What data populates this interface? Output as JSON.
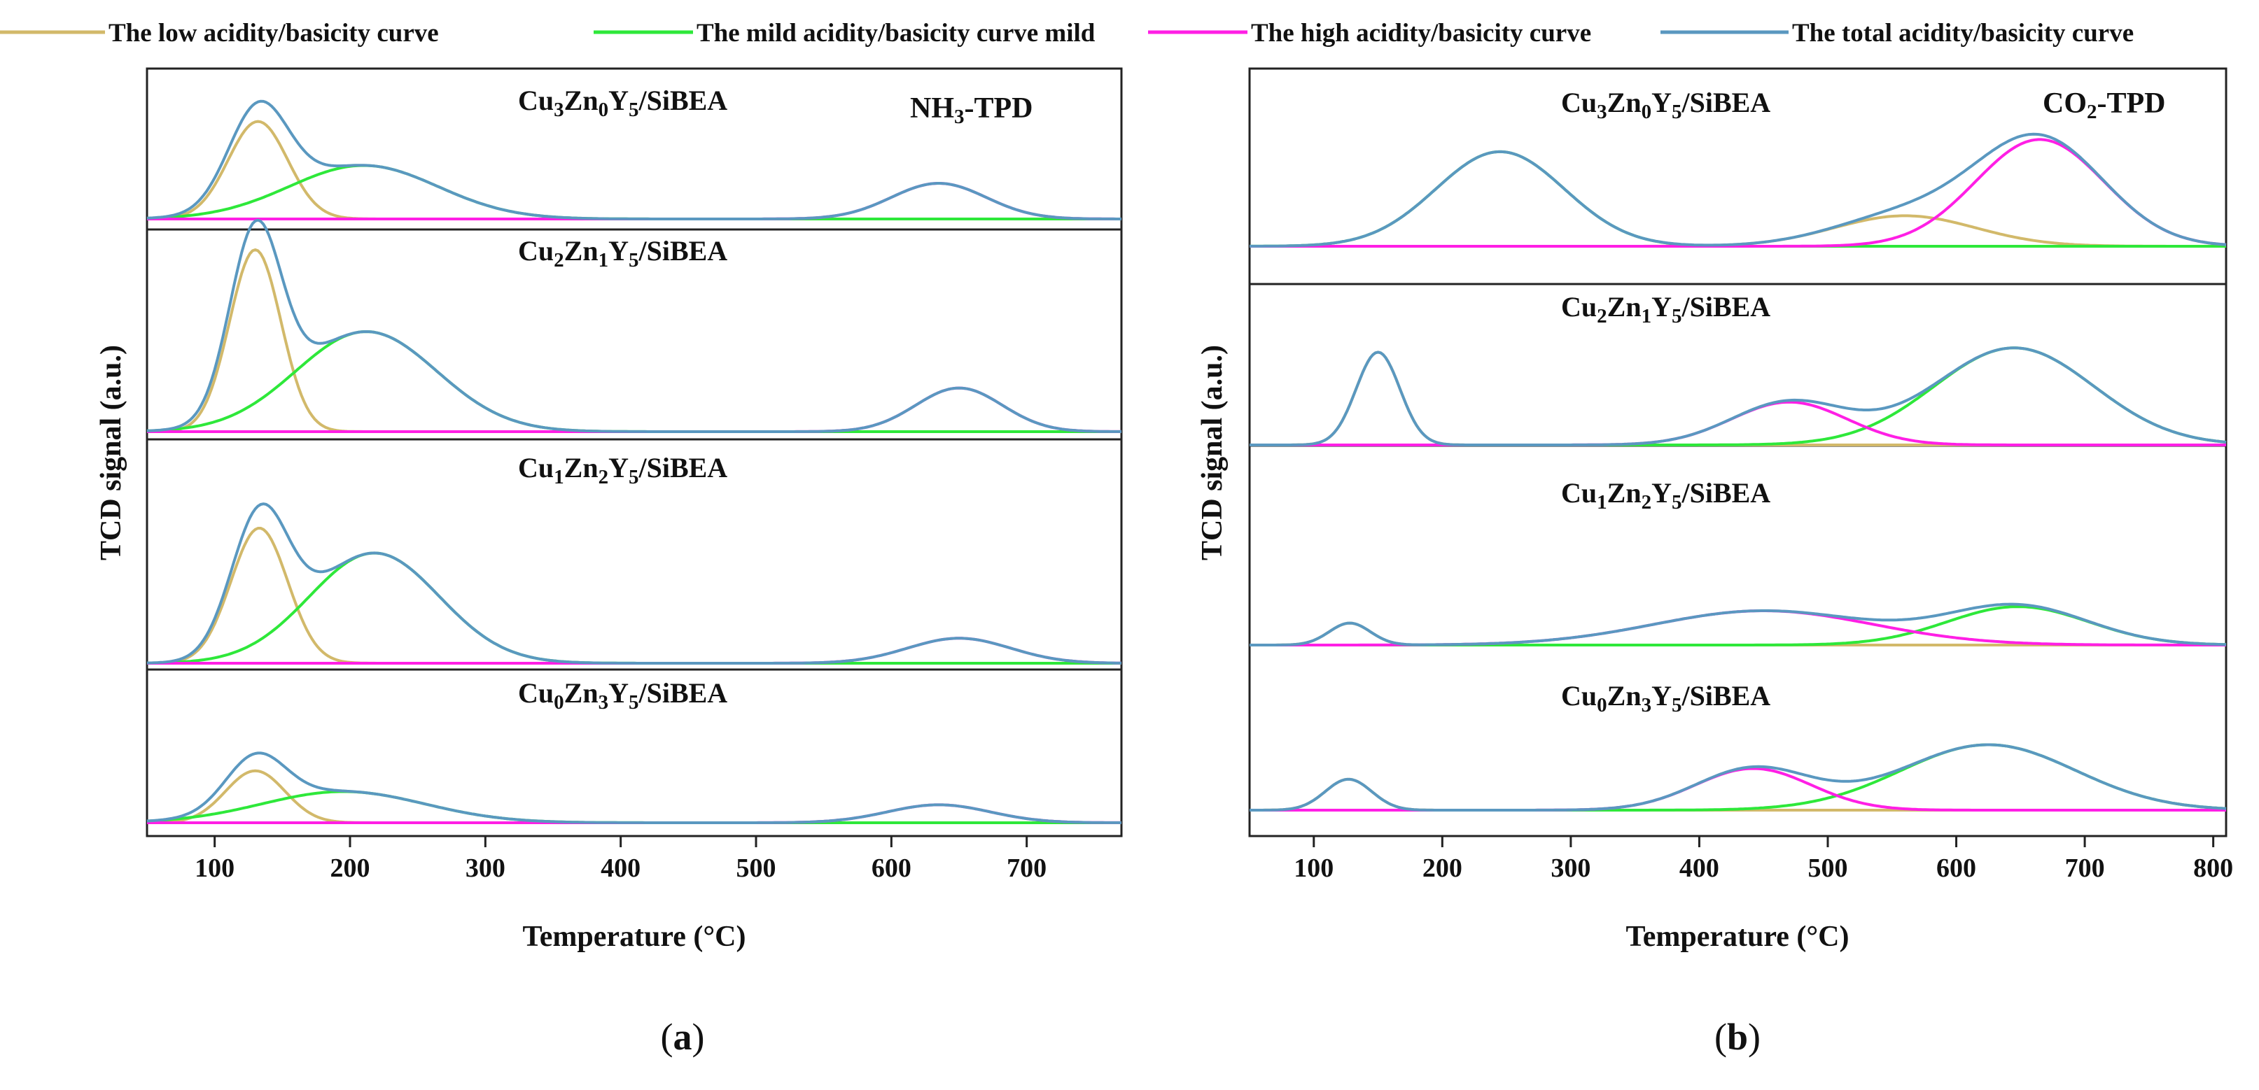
{
  "legend": [
    {
      "label": "The low acidity/basicity curve",
      "color": "#d2b96a"
    },
    {
      "label": "The mild acidity/basicity curve mild",
      "color": "#2ee83a"
    },
    {
      "label": "The high acidity/basicity curve",
      "color": "#ff1fe5"
    },
    {
      "label": "The total acidity/basicity curve",
      "color": "#5a98c0"
    }
  ],
  "colors": {
    "low": "#d2b96a",
    "mild": "#2ee83a",
    "high": "#ff1fe5",
    "total": "#5a98c0"
  },
  "captions": {
    "a": {
      "open": "(",
      "letter": "a",
      "close": ")"
    },
    "b": {
      "open": "(",
      "letter": "b",
      "close": ")"
    }
  },
  "chart_data": [
    {
      "type": "line",
      "id": "a",
      "title": "NH3-TPD",
      "title_parts": {
        "main": "NH",
        "sub": "3",
        "rest": "-TPD"
      },
      "xlabel": "Temperature (°C)",
      "ylabel": "TCD signal (a.u.)",
      "xlim": [
        50,
        770
      ],
      "xticks": [
        100,
        200,
        300,
        400,
        500,
        600,
        700
      ],
      "note": "Gaussian deconvolution: each component = amp * exp(-((T-center)^2)/(2*sigma^2)); total = sum of components. Amplitudes in arbitrary units (a.u.).",
      "panels": [
        {
          "label": "Cu3Zn0Y5/SiBEA",
          "label_parts": [
            [
              "Cu",
              ""
            ],
            [
              "3",
              "sub"
            ],
            [
              "Zn",
              ""
            ],
            [
              "0",
              "sub"
            ],
            [
              "Y",
              ""
            ],
            [
              "5",
              "sub"
            ],
            [
              "/SiBEA",
              ""
            ]
          ],
          "components": {
            "low": [
              {
                "center": 132,
                "sigma": 22,
                "amp": 0.82
              }
            ],
            "mild": [
              {
                "center": 210,
                "sigma": 55,
                "amp": 0.45
              }
            ],
            "high": [
              {
                "center": 635,
                "sigma": 35,
                "amp": 0.3
              }
            ]
          }
        },
        {
          "label": "Cu2Zn1Y5/SiBEA",
          "label_parts": [
            [
              "Cu",
              ""
            ],
            [
              "2",
              "sub"
            ],
            [
              "Zn",
              ""
            ],
            [
              "1",
              "sub"
            ],
            [
              "Y",
              ""
            ],
            [
              "5",
              "sub"
            ],
            [
              "/SiBEA",
              ""
            ]
          ],
          "components": {
            "low": [
              {
                "center": 130,
                "sigma": 19,
                "amp": 1.0
              }
            ],
            "mild": [
              {
                "center": 212,
                "sigma": 52,
                "amp": 0.55
              }
            ],
            "high": [
              {
                "center": 650,
                "sigma": 32,
                "amp": 0.24
              }
            ]
          }
        },
        {
          "label": "Cu1Zn2Y5/SiBEA",
          "label_parts": [
            [
              "Cu",
              ""
            ],
            [
              "1",
              "sub"
            ],
            [
              "Zn",
              ""
            ],
            [
              "2",
              "sub"
            ],
            [
              "Y",
              ""
            ],
            [
              "5",
              "sub"
            ],
            [
              "/SiBEA",
              ""
            ]
          ],
          "components": {
            "low": [
              {
                "center": 133,
                "sigma": 21,
                "amp": 0.92
              }
            ],
            "mild": [
              {
                "center": 218,
                "sigma": 48,
                "amp": 0.75
              }
            ],
            "high": [
              {
                "center": 650,
                "sigma": 38,
                "amp": 0.17
              }
            ]
          }
        },
        {
          "label": "Cu0Zn3Y5/SiBEA",
          "label_parts": [
            [
              "Cu",
              ""
            ],
            [
              "0",
              "sub"
            ],
            [
              "Zn",
              ""
            ],
            [
              "3",
              "sub"
            ],
            [
              "Y",
              ""
            ],
            [
              "5",
              "sub"
            ],
            [
              "/SiBEA",
              ""
            ]
          ],
          "components": {
            "low": [
              {
                "center": 130,
                "sigma": 22,
                "amp": 0.55
              }
            ],
            "mild": [
              {
                "center": 195,
                "sigma": 60,
                "amp": 0.33
              }
            ],
            "high": [
              {
                "center": 635,
                "sigma": 38,
                "amp": 0.19
              }
            ]
          }
        }
      ]
    },
    {
      "type": "line",
      "id": "b",
      "title": "CO2-TPD",
      "title_parts": {
        "main": "CO",
        "sub": "2",
        "rest": "-TPD"
      },
      "xlabel": "Temperature (°C)",
      "ylabel": "TCD signal (a.u.)",
      "xlim": [
        50,
        810
      ],
      "xticks": [
        100,
        200,
        300,
        400,
        500,
        600,
        700,
        800
      ],
      "note": "Gaussian deconvolution: each component = amp * exp(-((T-center)^2)/(2*sigma^2)); total = sum of components. Amplitudes in arbitrary units (a.u.).",
      "panels": [
        {
          "label": "Cu3Zn0Y5/SiBEA",
          "label_parts": [
            [
              "Cu",
              ""
            ],
            [
              "3",
              "sub"
            ],
            [
              "Zn",
              ""
            ],
            [
              "0",
              "sub"
            ],
            [
              "Y",
              ""
            ],
            [
              "5",
              "sub"
            ],
            [
              "/SiBEA",
              ""
            ]
          ],
          "components": {
            "low": [
              {
                "center": 560,
                "sigma": 55,
                "amp": 0.2
              }
            ],
            "mild": [
              {
                "center": 245,
                "sigma": 50,
                "amp": 0.62
              }
            ],
            "high": [
              {
                "center": 665,
                "sigma": 50,
                "amp": 0.7
              }
            ]
          }
        },
        {
          "label": "Cu2Zn1Y5/SiBEA",
          "label_parts": [
            [
              "Cu",
              ""
            ],
            [
              "2",
              "sub"
            ],
            [
              "Zn",
              ""
            ],
            [
              "1",
              "sub"
            ],
            [
              "Y",
              ""
            ],
            [
              "5",
              "sub"
            ],
            [
              "/SiBEA",
              ""
            ]
          ],
          "components": {
            "low": [
              {
                "center": 150,
                "sigma": 17,
                "amp": 0.65
              }
            ],
            "mild": [
              {
                "center": 645,
                "sigma": 62,
                "amp": 0.68
              }
            ],
            "high": [
              {
                "center": 470,
                "sigma": 45,
                "amp": 0.3
              }
            ]
          }
        },
        {
          "label": "Cu1Zn2Y5/SiBEA",
          "label_parts": [
            [
              "Cu",
              ""
            ],
            [
              "1",
              "sub"
            ],
            [
              "Zn",
              ""
            ],
            [
              "2",
              "sub"
            ],
            [
              "Y",
              ""
            ],
            [
              "5",
              "sub"
            ],
            [
              "/SiBEA",
              ""
            ]
          ],
          "components": {
            "low": [
              {
                "center": 128,
                "sigma": 16,
                "amp": 0.16
              }
            ],
            "mild": [
              {
                "center": 648,
                "sigma": 55,
                "amp": 0.28
              }
            ],
            "high": [
              {
                "center": 450,
                "sigma": 85,
                "amp": 0.25
              }
            ]
          }
        },
        {
          "label": "Cu0Zn3Y5/SiBEA",
          "label_parts": [
            [
              "Cu",
              ""
            ],
            [
              "0",
              "sub"
            ],
            [
              "Zn",
              ""
            ],
            [
              "3",
              "sub"
            ],
            [
              "Y",
              ""
            ],
            [
              "5",
              "sub"
            ],
            [
              "/SiBEA",
              ""
            ]
          ],
          "components": {
            "low": [
              {
                "center": 127,
                "sigma": 18,
                "amp": 0.26
              }
            ],
            "mild": [
              {
                "center": 625,
                "sigma": 68,
                "amp": 0.55
              }
            ],
            "high": [
              {
                "center": 442,
                "sigma": 45,
                "amp": 0.35
              }
            ]
          }
        }
      ]
    }
  ]
}
